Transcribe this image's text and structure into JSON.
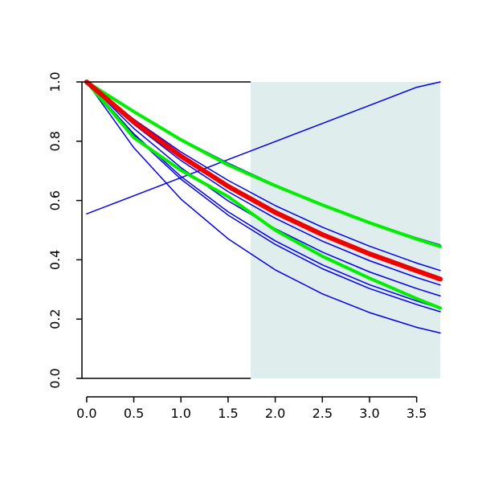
{
  "chart_data": {
    "type": "line",
    "title": "",
    "xlabel": "",
    "ylabel": "",
    "xlim": [
      -0.05,
      3.75
    ],
    "ylim": [
      0.0,
      1.0
    ],
    "x_ticks": [
      0.0,
      0.5,
      1.0,
      1.5,
      2.0,
      2.5,
      3.0,
      3.5
    ],
    "x_tick_labels": [
      "0.0",
      "0.5",
      "1.0",
      "1.5",
      "2.0",
      "2.5",
      "3.0",
      "3.5"
    ],
    "y_ticks": [
      0.0,
      0.2,
      0.4,
      0.6,
      0.8,
      1.0
    ],
    "y_tick_labels": [
      "0.0",
      "0.2",
      "0.4",
      "0.6",
      "0.8",
      "1.0"
    ],
    "grid": false,
    "legend": "none",
    "shaded_region": {
      "x_start": 1.74,
      "x_end": 3.75,
      "color": "#e0eded"
    },
    "series": [
      {
        "color": "#0000ee",
        "width": 1.5,
        "x": [
          0,
          0.5,
          1,
          1.5,
          2,
          2.5,
          3,
          3.5,
          3.75
        ],
        "y": [
          0.555,
          0.616,
          0.677,
          0.738,
          0.799,
          0.86,
          0.921,
          0.982,
          1.0
        ]
      },
      {
        "color": "#0000ee",
        "width": 1.5,
        "x": [
          0,
          0.5,
          1,
          1.5,
          2,
          2.5,
          3,
          3.5,
          3.75
        ],
        "y": [
          1.0,
          0.899,
          0.808,
          0.726,
          0.653,
          0.587,
          0.527,
          0.474,
          0.45
        ]
      },
      {
        "color": "#0000ee",
        "width": 1.5,
        "x": [
          0,
          0.5,
          1,
          1.5,
          2,
          2.5,
          3,
          3.5,
          3.75
        ],
        "y": [
          1.0,
          0.874,
          0.764,
          0.668,
          0.583,
          0.51,
          0.446,
          0.389,
          0.364
        ]
      },
      {
        "color": "#0000ee",
        "width": 1.5,
        "x": [
          0,
          0.5,
          1,
          1.5,
          2,
          2.5,
          3,
          3.5,
          3.75
        ],
        "y": [
          1.0,
          0.865,
          0.749,
          0.648,
          0.561,
          0.485,
          0.42,
          0.363,
          0.338
        ]
      },
      {
        "color": "#0000ee",
        "width": 1.5,
        "x": [
          0,
          0.5,
          1,
          1.5,
          2,
          2.5,
          3,
          3.5,
          3.75
        ],
        "y": [
          1.0,
          0.857,
          0.735,
          0.63,
          0.54,
          0.463,
          0.397,
          0.34,
          0.315
        ]
      },
      {
        "color": "#0000ee",
        "width": 1.5,
        "x": [
          0,
          0.5,
          1,
          1.5,
          2,
          2.5,
          3,
          3.5,
          3.75
        ],
        "y": [
          1.0,
          0.843,
          0.711,
          0.599,
          0.505,
          0.426,
          0.359,
          0.303,
          0.278
        ]
      },
      {
        "color": "#0000ee",
        "width": 1.5,
        "x": [
          0,
          0.5,
          1,
          1.5,
          2,
          2.5,
          3,
          3.5,
          3.75
        ],
        "y": [
          1.0,
          0.825,
          0.681,
          0.562,
          0.464,
          0.383,
          0.316,
          0.261,
          0.236
        ]
      },
      {
        "color": "#0000ee",
        "width": 1.5,
        "x": [
          0,
          0.5,
          1,
          1.5,
          2,
          2.5,
          3,
          3.5,
          3.75
        ],
        "y": [
          1.0,
          0.82,
          0.672,
          0.551,
          0.452,
          0.37,
          0.303,
          0.249,
          0.225
        ]
      },
      {
        "color": "#0000ee",
        "width": 1.5,
        "x": [
          0,
          0.5,
          1,
          1.5,
          2,
          2.5,
          3,
          3.5,
          3.75
        ],
        "y": [
          1.0,
          0.778,
          0.605,
          0.471,
          0.366,
          0.285,
          0.222,
          0.172,
          0.153
        ]
      },
      {
        "color": "#00ee00",
        "width": 4,
        "x": [
          0,
          0.5,
          1,
          1.5,
          2,
          2.5,
          3,
          3.5,
          3.75
        ],
        "y": [
          1.0,
          0.9,
          0.805,
          0.72,
          0.65,
          0.585,
          0.525,
          0.47,
          0.445
        ]
      },
      {
        "color": "#00ee00",
        "width": 4,
        "x": [
          0,
          0.5,
          1,
          1.5,
          2,
          2.5,
          3,
          3.5,
          3.75
        ],
        "y": [
          1.0,
          0.812,
          0.702,
          0.613,
          0.5,
          0.412,
          0.338,
          0.269,
          0.237
        ]
      },
      {
        "color": "#ee0000",
        "width": 6,
        "x": [
          0,
          0.5,
          1,
          1.5,
          2,
          2.5,
          3,
          3.5,
          3.75
        ],
        "y": [
          1.0,
          0.865,
          0.75,
          0.648,
          0.56,
          0.485,
          0.42,
          0.363,
          0.335
        ]
      }
    ]
  }
}
